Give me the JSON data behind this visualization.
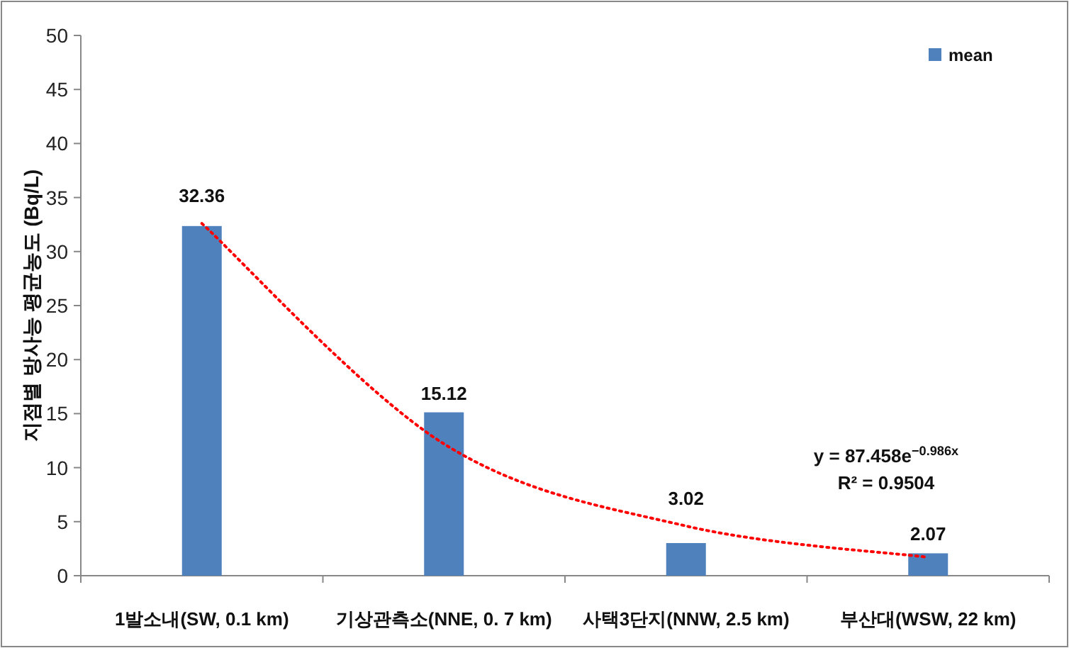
{
  "chart_data": {
    "type": "bar",
    "ylabel": "지점별 방사능 평균농도 (Bq/L)",
    "categories": [
      "1발소내(SW, 0.1 km)",
      "기상관측소(NNE, 0. 7 km)",
      "사택3단지(NNW, 2.5 km)",
      "부산대(WSW, 22 km)"
    ],
    "series": [
      {
        "name": "mean",
        "color": "#4f81bd",
        "values": [
          32.36,
          15.12,
          3.02,
          2.07
        ],
        "value_labels": [
          "32.36",
          "15.12",
          "3.02",
          "2.07"
        ]
      },
      {
        "type": "line",
        "color": "#ff0000",
        "line_style": "dotted",
        "values": [
          32.6,
          12.2,
          4.6,
          1.7
        ]
      }
    ],
    "ylim": [
      0,
      50
    ],
    "yticks": [
      0,
      5,
      10,
      15,
      20,
      25,
      30,
      35,
      40,
      45,
      50
    ],
    "annotations": [
      "y = 87.458e$^{−0.986x}$",
      "R² = 0.9504"
    ],
    "legend": "top right",
    "grid": false
  }
}
